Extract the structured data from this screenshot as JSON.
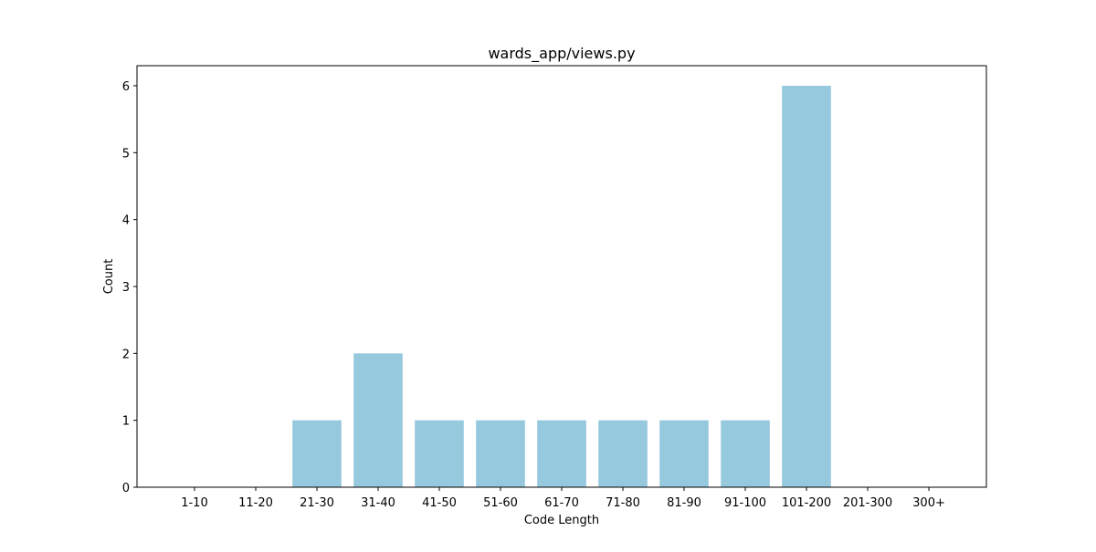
{
  "chart_data": {
    "type": "bar",
    "title": "wards_app/views.py",
    "xlabel": "Code Length",
    "ylabel": "Count",
    "categories": [
      "1-10",
      "11-20",
      "21-30",
      "31-40",
      "41-50",
      "51-60",
      "61-70",
      "71-80",
      "81-90",
      "91-100",
      "101-200",
      "201-300",
      "300+"
    ],
    "values": [
      0,
      0,
      1,
      2,
      1,
      1,
      1,
      1,
      1,
      1,
      6,
      0,
      0
    ],
    "ylim": [
      0,
      6.3
    ],
    "yticks": [
      0,
      1,
      2,
      3,
      4,
      5,
      6
    ],
    "grid": false,
    "bar_color": "#96c9dd"
  }
}
